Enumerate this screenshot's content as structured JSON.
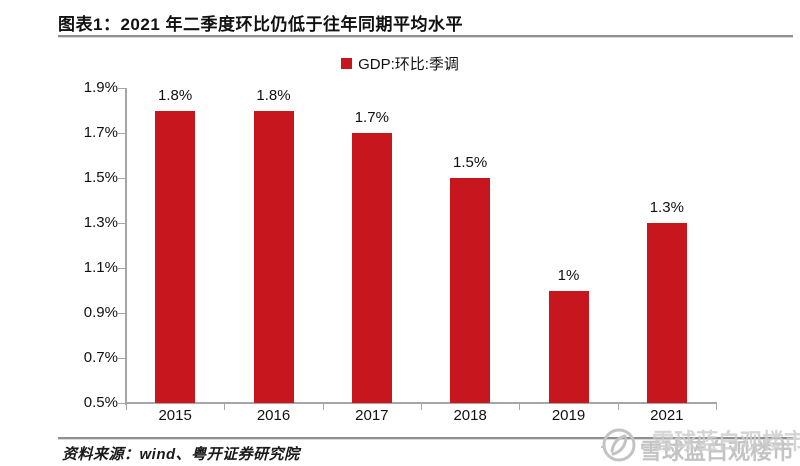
{
  "header": {
    "title": "图表1：2021 年二季度环比仍低于往年同期平均水平"
  },
  "chart_data": {
    "type": "bar",
    "title": "图表1：2021 年二季度环比仍低于往年同期平均水平",
    "legend": "GDP:环比:季调",
    "legend_position": "top-center",
    "categories": [
      "2015",
      "2016",
      "2017",
      "2018",
      "2019",
      "2021"
    ],
    "values": [
      1.8,
      1.8,
      1.7,
      1.5,
      1.0,
      1.3
    ],
    "data_labels": [
      "1.8%",
      "1.8%",
      "1.7%",
      "1.5%",
      "1%",
      "1.3%"
    ],
    "y_ticks": [
      "1.9%",
      "1.7%",
      "1.5%",
      "1.3%",
      "1.1%",
      "0.9%",
      "0.7%",
      "0.5%"
    ],
    "ylim": [
      0.5,
      1.9
    ],
    "xlabel": "",
    "ylabel": "",
    "grid": false,
    "bar_color": "#C7161E",
    "axis_color": "#A6A6A6"
  },
  "footer": {
    "source": "资料来源：wind、粤开证券研究院"
  },
  "watermark": {
    "brand": "雪球",
    "text": "雪球蓝白观楼市",
    "logo": "xueqiu-snowball-icon",
    "color": "#c3c3c3"
  }
}
